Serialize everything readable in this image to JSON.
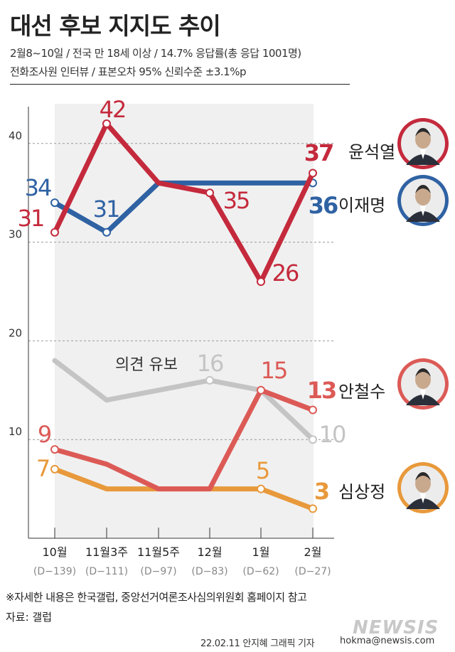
{
  "header": {
    "title": "대선 후보 지지도 추이",
    "subtitle_line1": "2월8~10일 / 전국 만 18세 이상 / 14.7% 응답률(총 응답 1001명)",
    "subtitle_line2": "전화조사원 인터뷰 / 표본오차 95% 신뢰수준 ±3.1%p"
  },
  "chart_data": {
    "type": "line",
    "categories": [
      "10월",
      "11월3주",
      "11월5주",
      "12월",
      "1월",
      "2월"
    ],
    "category_sublabels": [
      "(D−139)",
      "(D−111)",
      "(D−97)",
      "(D−83)",
      "(D−62)",
      "(D−27)"
    ],
    "ylim": [
      0,
      45
    ],
    "yticks": [
      10,
      20,
      30,
      40
    ],
    "grid": true,
    "series": [
      {
        "name": "윤석열",
        "color": "#c42a3c",
        "values": [
          31,
          42,
          36,
          35,
          26,
          37
        ],
        "labels": [
          "31",
          "42",
          "",
          "35",
          "26",
          "37"
        ]
      },
      {
        "name": "이재명",
        "color": "#2f62a3",
        "values": [
          34,
          31,
          36,
          36,
          36,
          36
        ],
        "labels": [
          "34",
          "31",
          "",
          "",
          "",
          "36"
        ]
      },
      {
        "name": "의견 유보",
        "color": "#c4c4c4",
        "values": [
          18,
          14,
          15,
          16,
          15,
          10
        ],
        "labels": [
          "",
          "",
          "",
          "16",
          "",
          "10"
        ]
      },
      {
        "name": "안철수",
        "color": "#dc5a56",
        "values": [
          9,
          7.5,
          5,
          5,
          15,
          13
        ],
        "labels": [
          "9",
          "",
          "",
          "",
          "15",
          "13"
        ]
      },
      {
        "name": "심상정",
        "color": "#e8993b",
        "values": [
          7,
          5,
          5,
          5,
          5,
          3
        ],
        "labels": [
          "7",
          "",
          "",
          "",
          "5",
          "3"
        ]
      }
    ]
  },
  "footer": {
    "note": "※자세한 내용은 한국갤럽, 중앙선거여론조사심의위원회 홈페이지 참고",
    "source": "자료: 갤럽",
    "credit": "22.02.11 안지혜 그래픽 기자",
    "email": "hokma@newsis.com",
    "watermark": "NEWSIS"
  }
}
